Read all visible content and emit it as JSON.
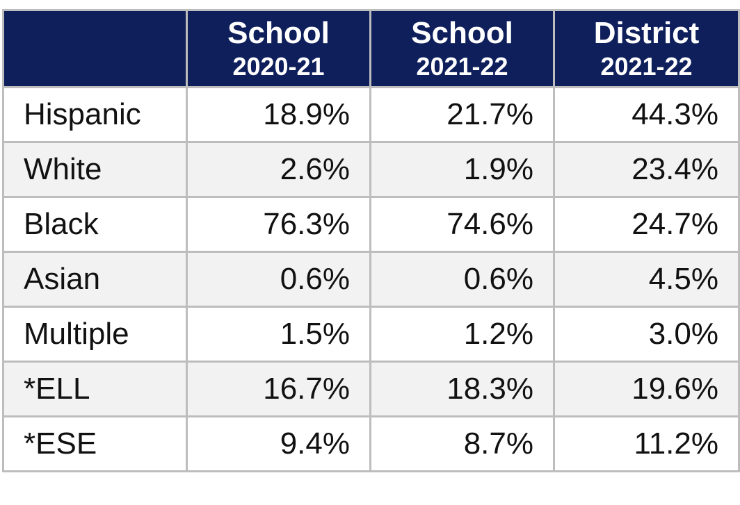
{
  "table": {
    "columns": [
      {
        "title": "School",
        "period": "2020-21"
      },
      {
        "title": "School",
        "period": "2021-22"
      },
      {
        "title": "District",
        "period": "2021-22"
      }
    ],
    "rows": [
      [
        "Hispanic",
        "18.9%",
        "21.7%",
        "44.3%"
      ],
      [
        "White",
        "2.6%",
        "1.9%",
        "23.4%"
      ],
      [
        "Black",
        "76.3%",
        "74.6%",
        "24.7%"
      ],
      [
        "Asian",
        "0.6%",
        "0.6%",
        "4.5%"
      ],
      [
        "Multiple",
        "1.5%",
        "1.2%",
        "3.0%"
      ],
      [
        "*ELL",
        "16.7%",
        "18.3%",
        "19.6%"
      ],
      [
        "*ESE",
        "9.4%",
        "8.7%",
        "11.2%"
      ]
    ]
  }
}
